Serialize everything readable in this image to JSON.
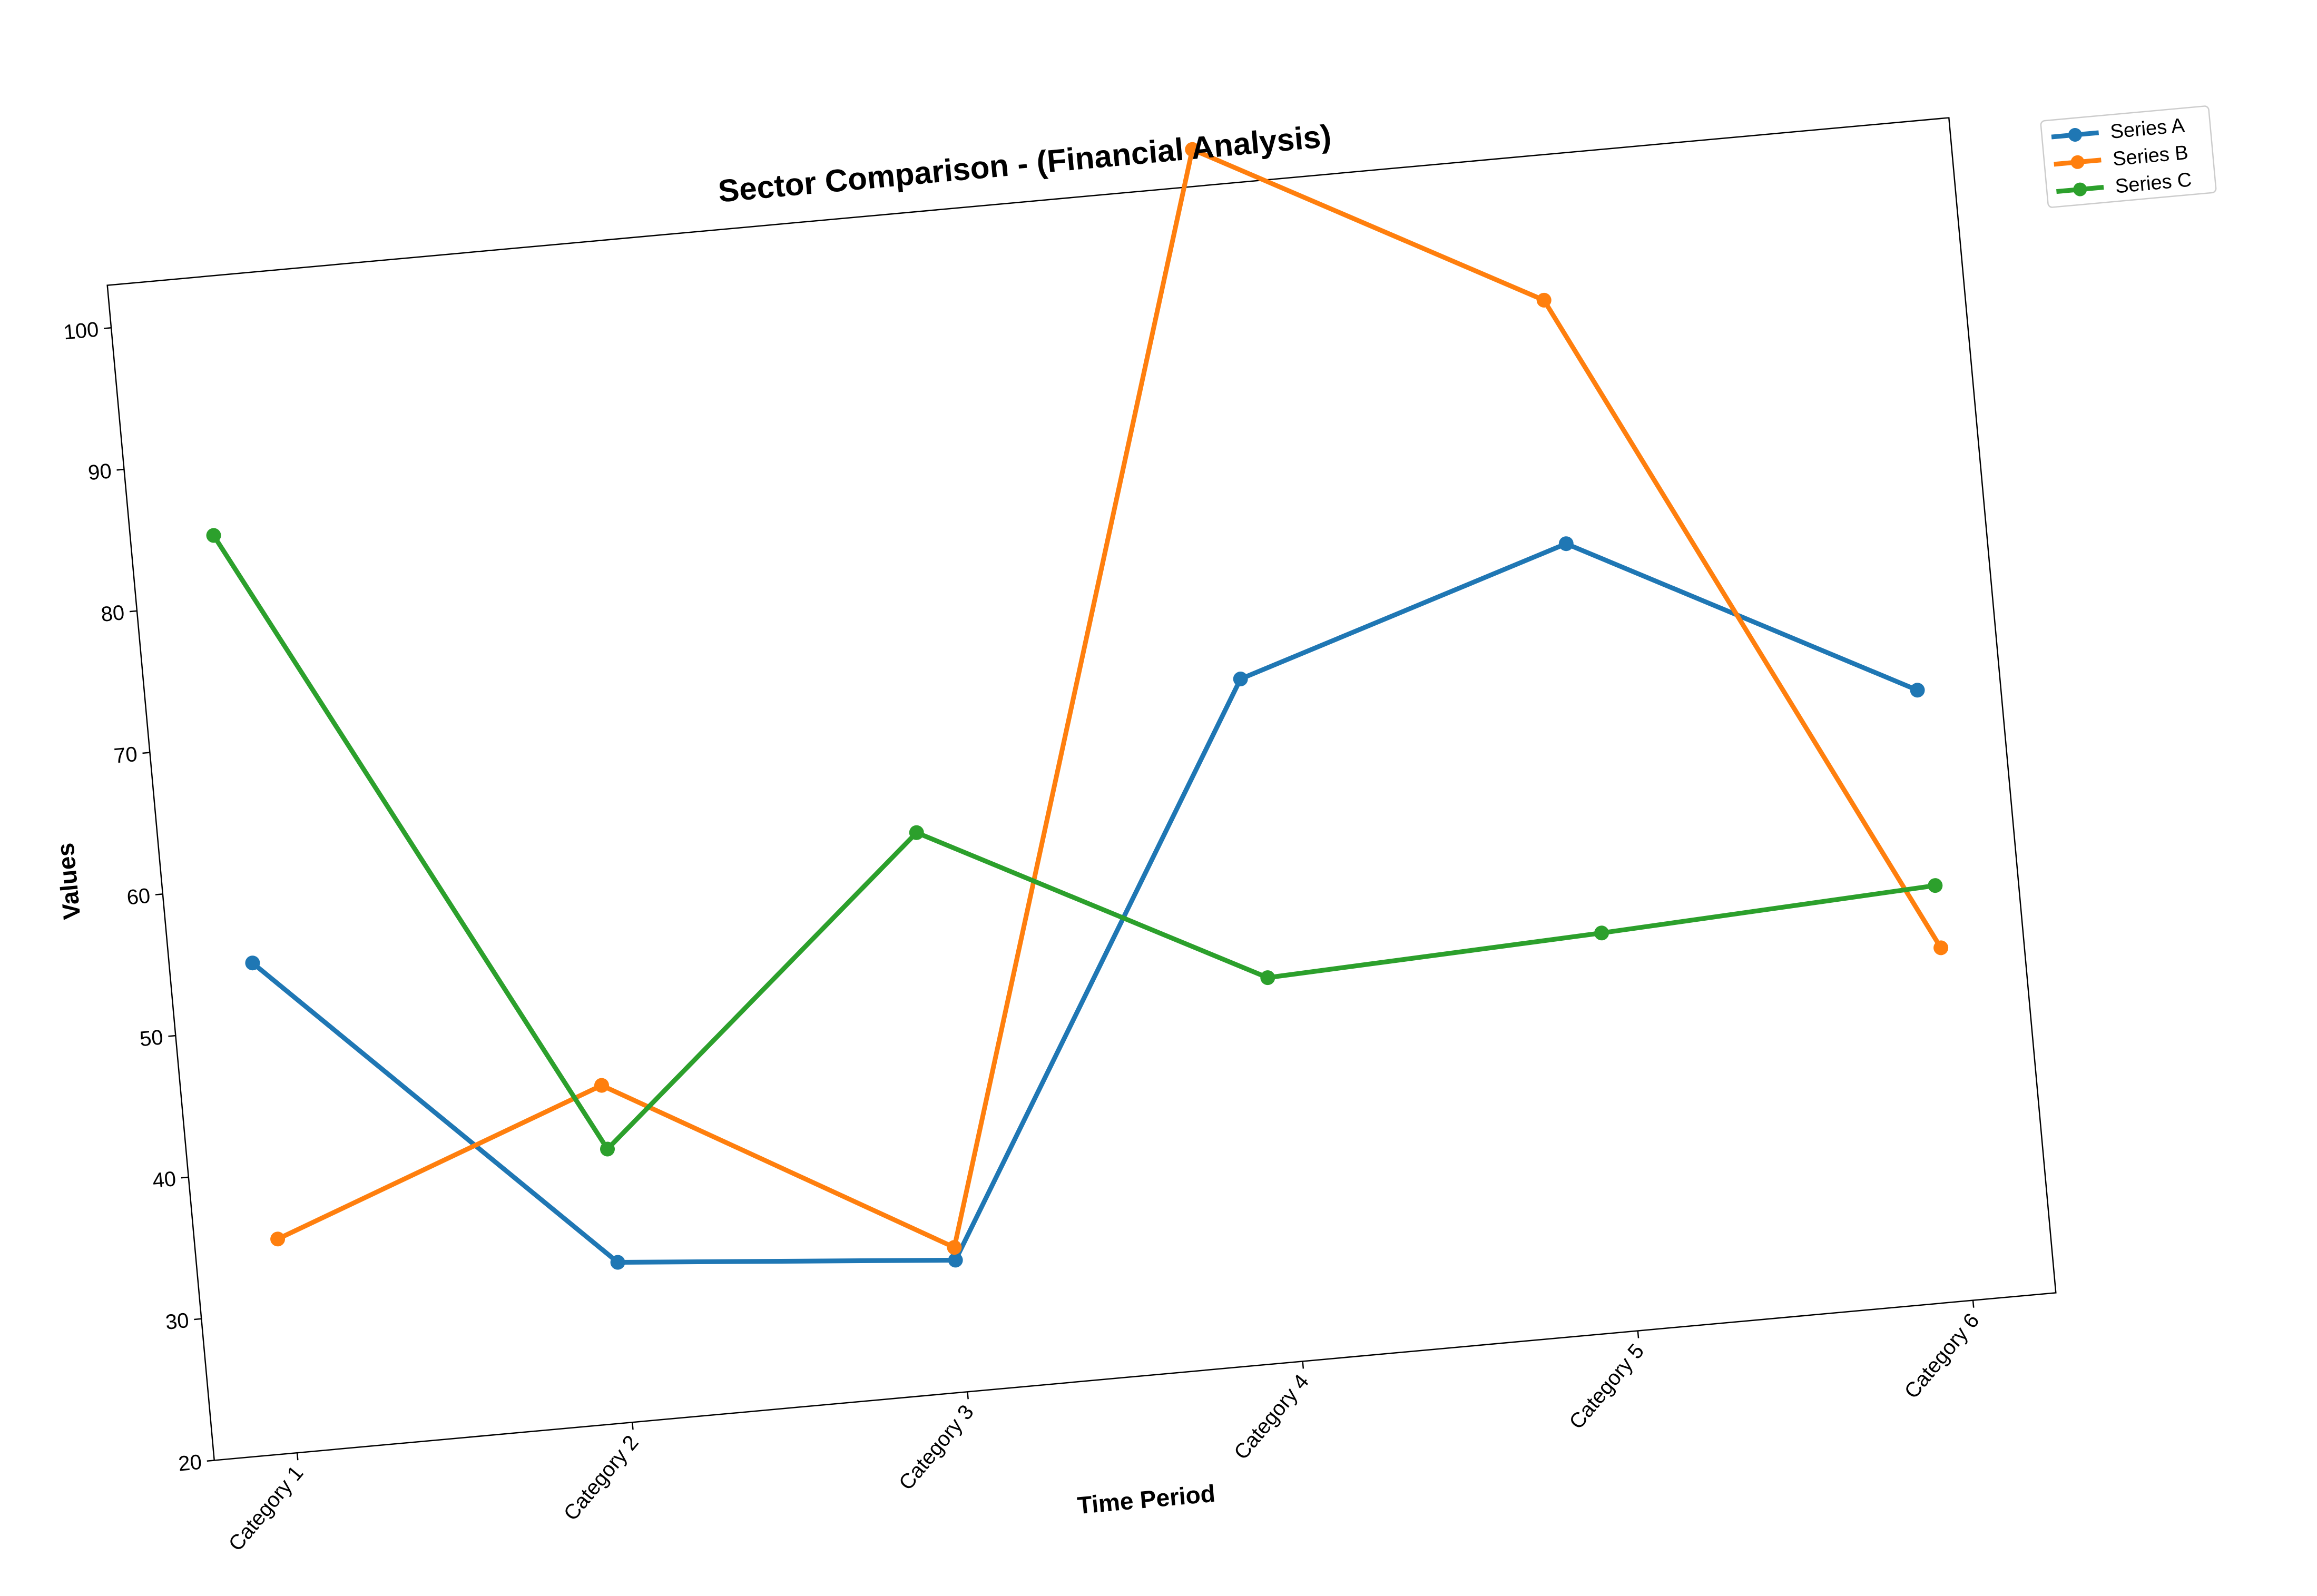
{
  "chart_data": {
    "type": "line",
    "title": "Sector Comparison - (Financial Analysis)",
    "xlabel": "Time Period",
    "ylabel": "Values",
    "categories": [
      "Category 1",
      "Category 2",
      "Category 3",
      "Category 4",
      "Category 5",
      "Category 6"
    ],
    "ylim": [
      20,
      103
    ],
    "yticks": [
      20,
      30,
      40,
      50,
      60,
      70,
      80,
      90,
      100
    ],
    "grid": false,
    "legend_position": "top-right, outside plot",
    "marker": "circle",
    "series": [
      {
        "name": "Series A",
        "color": "#1f77b4",
        "values": [
          54.6,
          31.3,
          29.3,
          68.2,
          75.6,
          63.1
        ]
      },
      {
        "name": "Series B",
        "color": "#ff7f0e",
        "values": [
          35.1,
          43.8,
          30.2,
          105.6,
          92.8,
          44.9
        ]
      },
      {
        "name": "Series C",
        "color": "#2ca02c",
        "values": [
          84.8,
          39.3,
          59.5,
          47.1,
          48.1,
          49.3
        ]
      }
    ]
  }
}
